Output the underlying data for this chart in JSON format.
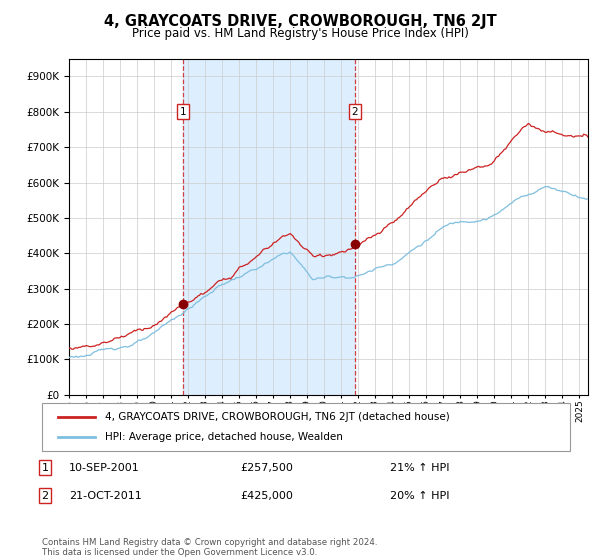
{
  "title": "4, GRAYCOATS DRIVE, CROWBOROUGH, TN6 2JT",
  "subtitle": "Price paid vs. HM Land Registry's House Price Index (HPI)",
  "legend_line1": "4, GRAYCOATS DRIVE, CROWBOROUGH, TN6 2JT (detached house)",
  "legend_line2": "HPI: Average price, detached house, Wealden",
  "annotation1_label": "1",
  "annotation1_date": "10-SEP-2001",
  "annotation1_price": "£257,500",
  "annotation1_hpi": "21% ↑ HPI",
  "annotation2_label": "2",
  "annotation2_date": "21-OCT-2011",
  "annotation2_price": "£425,000",
  "annotation2_hpi": "20% ↑ HPI",
  "sale1_year": 2001.7,
  "sale1_price": 257500,
  "sale2_year": 2011.8,
  "sale2_price": 425000,
  "hpi_color": "#7fbfdf",
  "price_color": "#cc2222",
  "dot_color": "#880000",
  "shade_color": "#ddeeff",
  "vline_color": "#cc2222",
  "grid_color": "#cccccc",
  "bg_color": "#ffffff",
  "plot_bg_color": "#ffffff",
  "ylim": [
    0,
    950000
  ],
  "xlim_start": 1995,
  "xlim_end": 2025.5,
  "footer": "Contains HM Land Registry data © Crown copyright and database right 2024.\nThis data is licensed under the Open Government Licence v3.0."
}
